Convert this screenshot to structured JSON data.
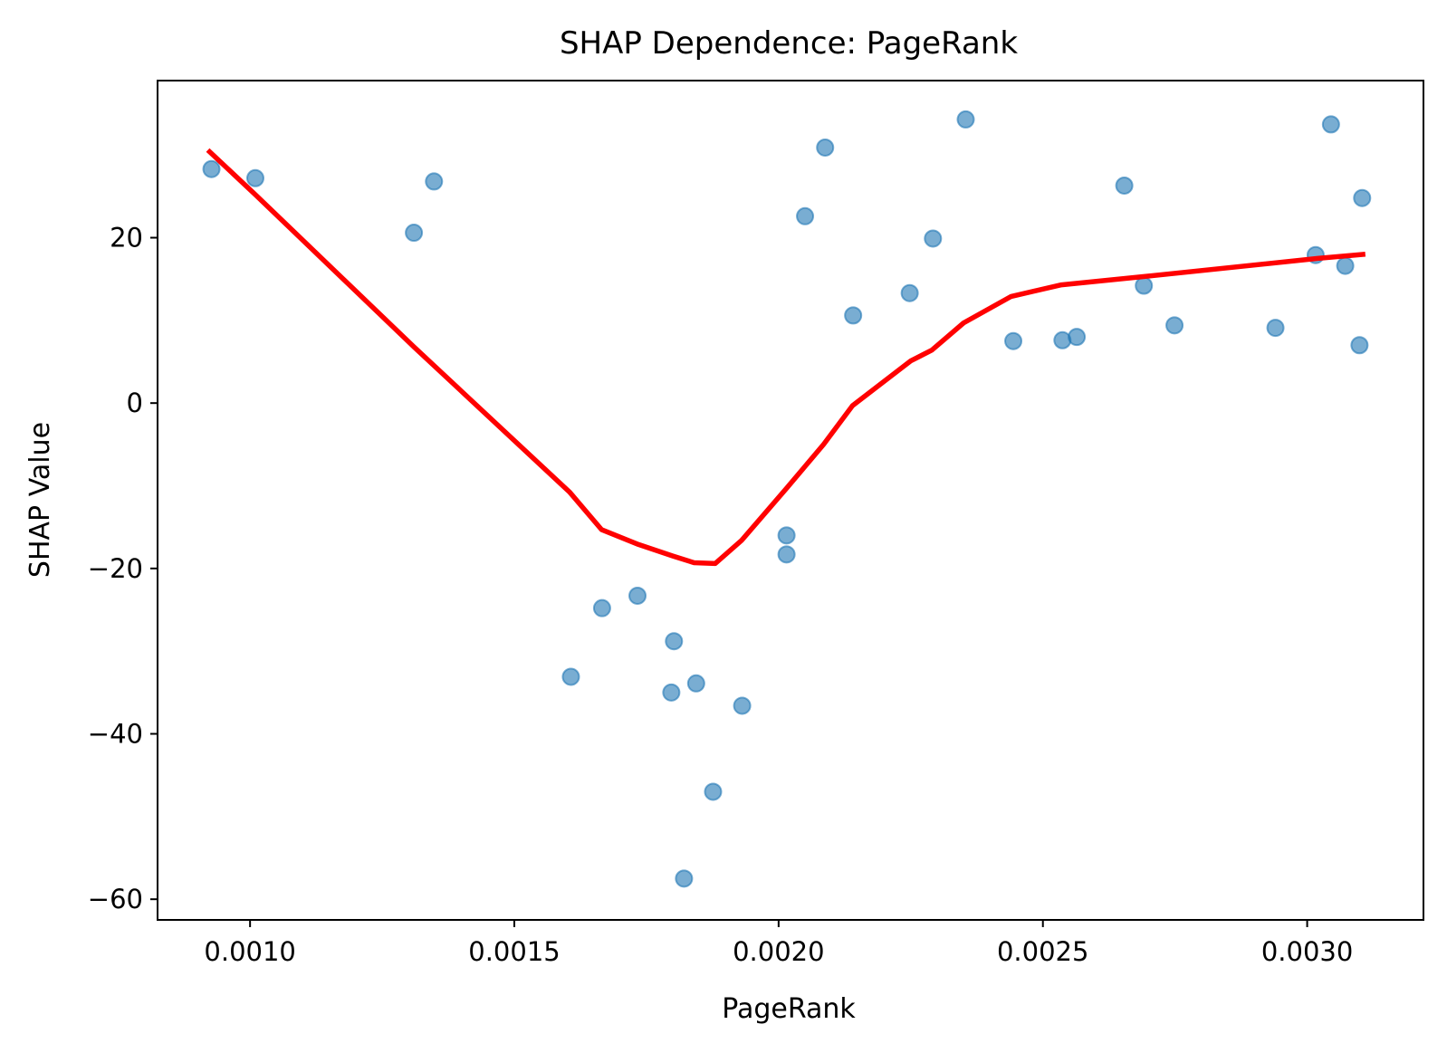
{
  "chart_data": {
    "type": "scatter",
    "title": "SHAP Dependence: PageRank",
    "xlabel": "PageRank",
    "ylabel": "SHAP Value",
    "xlim": [
      0.000825,
      0.00322
    ],
    "ylim": [
      -62.5,
      39.0
    ],
    "x_ticks": [
      {
        "value": 0.001,
        "label": "0.0010"
      },
      {
        "value": 0.0015,
        "label": "0.0015"
      },
      {
        "value": 0.002,
        "label": "0.0020"
      },
      {
        "value": 0.0025,
        "label": "0.0025"
      },
      {
        "value": 0.003,
        "label": "0.0030"
      }
    ],
    "y_ticks": [
      {
        "value": 20,
        "label": "20"
      },
      {
        "value": 0,
        "label": "0"
      },
      {
        "value": -20,
        "label": "−20"
      },
      {
        "value": -40,
        "label": "−40"
      },
      {
        "value": -60,
        "label": "−60"
      }
    ],
    "grid": false,
    "series": [
      {
        "kind": "scatter",
        "color": "#1f77b4",
        "alpha": 0.6,
        "points": [
          {
            "x": 0.000927,
            "y": 28.3
          },
          {
            "x": 0.00101,
            "y": 27.2
          },
          {
            "x": 0.00131,
            "y": 20.6
          },
          {
            "x": 0.001348,
            "y": 26.8
          },
          {
            "x": 0.001607,
            "y": -33.1
          },
          {
            "x": 0.001666,
            "y": -24.8
          },
          {
            "x": 0.001733,
            "y": -23.3
          },
          {
            "x": 0.001797,
            "y": -35.0
          },
          {
            "x": 0.001802,
            "y": -28.8
          },
          {
            "x": 0.001821,
            "y": -57.5
          },
          {
            "x": 0.001844,
            "y": -33.9
          },
          {
            "x": 0.001876,
            "y": -47.0
          },
          {
            "x": 0.001931,
            "y": -36.6
          },
          {
            "x": 0.002015,
            "y": -16.0
          },
          {
            "x": 0.002015,
            "y": -18.3
          },
          {
            "x": 0.00205,
            "y": 22.6
          },
          {
            "x": 0.002088,
            "y": 30.9
          },
          {
            "x": 0.002141,
            "y": 10.6
          },
          {
            "x": 0.002248,
            "y": 13.3
          },
          {
            "x": 0.002292,
            "y": 19.9
          },
          {
            "x": 0.002354,
            "y": 34.3
          },
          {
            "x": 0.002444,
            "y": 7.5
          },
          {
            "x": 0.002537,
            "y": 7.6
          },
          {
            "x": 0.002564,
            "y": 8.0
          },
          {
            "x": 0.002654,
            "y": 26.3
          },
          {
            "x": 0.002691,
            "y": 14.2
          },
          {
            "x": 0.002749,
            "y": 9.4
          },
          {
            "x": 0.00294,
            "y": 9.1
          },
          {
            "x": 0.003016,
            "y": 17.9
          },
          {
            "x": 0.003045,
            "y": 33.7
          },
          {
            "x": 0.003072,
            "y": 16.6
          },
          {
            "x": 0.003099,
            "y": 7.0
          },
          {
            "x": 0.003104,
            "y": 24.8
          }
        ]
      },
      {
        "kind": "line",
        "color": "#ff0000",
        "points": [
          {
            "x": 0.00092,
            "y": 30.6
          },
          {
            "x": 0.00101,
            "y": 25.2
          },
          {
            "x": 0.00131,
            "y": 6.8
          },
          {
            "x": 0.001605,
            "y": -10.8
          },
          {
            "x": 0.001665,
            "y": -15.3
          },
          {
            "x": 0.001735,
            "y": -17.1
          },
          {
            "x": 0.0018,
            "y": -18.5
          },
          {
            "x": 0.00184,
            "y": -19.3
          },
          {
            "x": 0.00188,
            "y": -19.4
          },
          {
            "x": 0.00193,
            "y": -16.6
          },
          {
            "x": 0.002015,
            "y": -10.3
          },
          {
            "x": 0.002085,
            "y": -5.0
          },
          {
            "x": 0.00214,
            "y": -0.3
          },
          {
            "x": 0.00225,
            "y": 5.1
          },
          {
            "x": 0.00229,
            "y": 6.4
          },
          {
            "x": 0.00235,
            "y": 9.7
          },
          {
            "x": 0.00244,
            "y": 12.9
          },
          {
            "x": 0.002535,
            "y": 14.3
          },
          {
            "x": 0.00269,
            "y": 15.3
          },
          {
            "x": 0.00302,
            "y": 17.5
          },
          {
            "x": 0.00311,
            "y": 18.0
          }
        ]
      }
    ]
  }
}
